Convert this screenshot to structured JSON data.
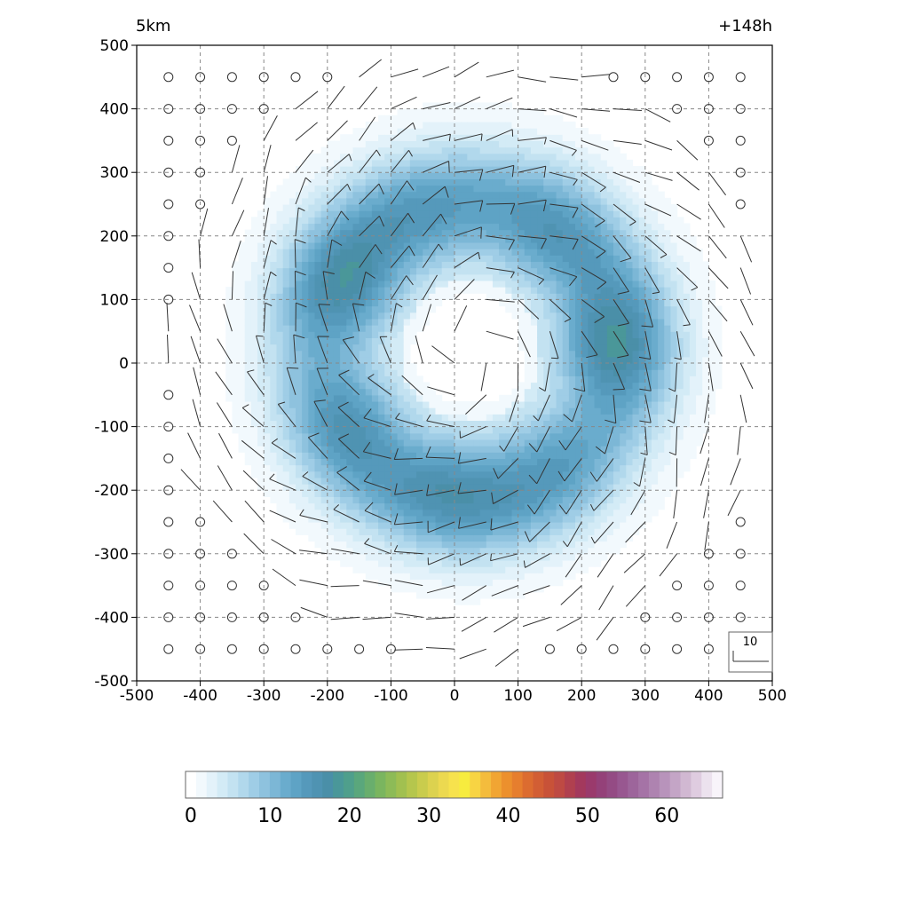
{
  "chart_data": {
    "type": "heatmap",
    "title_left": "5km",
    "title_right": "+148h",
    "xlabel": "",
    "ylabel": "",
    "xlim": [
      -500,
      500
    ],
    "ylim": [
      -500,
      500
    ],
    "x_ticks": [
      -500,
      -400,
      -300,
      -200,
      -100,
      0,
      100,
      200,
      300,
      400,
      500
    ],
    "y_ticks": [
      -500,
      -400,
      -300,
      -200,
      -100,
      0,
      100,
      200,
      300,
      400,
      500
    ],
    "grid": true,
    "field": {
      "description_units": "wind speed contours",
      "ring_center": [
        25,
        20
      ],
      "eye_radius_approx": 140,
      "peak_ring_radius_approx": 230,
      "peak_value_approx": 14,
      "outer_edge_radius_approx": 470
    },
    "colorbar": {
      "range": [
        0,
        65
      ],
      "tick_values": [
        0,
        10,
        20,
        30,
        40,
        50,
        60
      ],
      "tick_labels": [
        "0",
        "10",
        "20",
        "30",
        "40",
        "50",
        "60"
      ],
      "colors": [
        "#ffffff",
        "#f2f9fd",
        "#e3f2fa",
        "#d3ebf6",
        "#c3e2f1",
        "#b1d8ec",
        "#9fcde6",
        "#8ec2de",
        "#7cb7d6",
        "#6aaccd",
        "#5ea3c5",
        "#5599bb",
        "#4f93b2",
        "#4a8fa8",
        "#4a9799",
        "#4f9f8c",
        "#5aa77c",
        "#69ae6d",
        "#7ab55f",
        "#8dbb57",
        "#a1c050",
        "#b5c64d",
        "#c9cc4d",
        "#dcd24f",
        "#ecd950",
        "#f7e24d",
        "#f7ec3e",
        "#f8d443",
        "#f4bc3d",
        "#f1a533",
        "#ec902d",
        "#e67e2e",
        "#dc6c30",
        "#d25e34",
        "#c85238",
        "#be4a43",
        "#b0404f",
        "#a3395d",
        "#9a3a6c",
        "#944179",
        "#944b84",
        "#985790",
        "#9d659b",
        "#a573a6",
        "#ae83b0",
        "#b893bb",
        "#c4a5c6",
        "#d1b8d2",
        "#dfcce0",
        "#ece2ee",
        "#f8f4fa"
      ]
    },
    "barb_reference": {
      "label": "10"
    }
  }
}
